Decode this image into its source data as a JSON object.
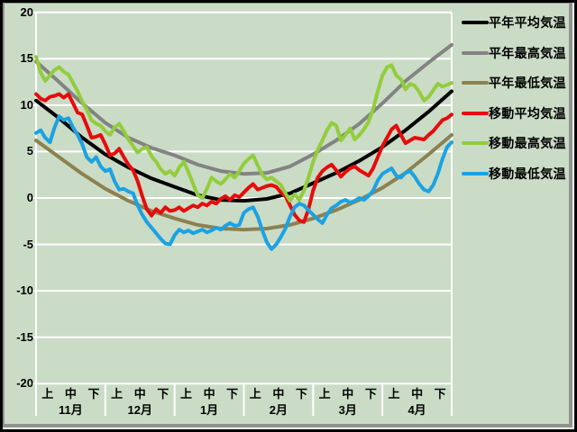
{
  "window": {
    "background_color": "#cadcc6",
    "frame_outer_color": "#000000",
    "frame_inner_color": "#8f948f",
    "gridline_color": "#ffffff"
  },
  "chart_data": {
    "type": "line",
    "title": "",
    "legend_position": "right",
    "grid": true,
    "y_axis": {
      "min": -20,
      "max": 20,
      "tick_step": 5,
      "tick_labels": [
        "20",
        "15",
        "10",
        "5",
        "0",
        "-5",
        "-10",
        "-15",
        "-20"
      ]
    },
    "x_axis": {
      "months": [
        "11月",
        "12月",
        "1月",
        "2月",
        "3月",
        "4月"
      ],
      "period_labels": [
        "上",
        "中",
        "下"
      ],
      "days_total": 180
    },
    "series": [
      {
        "name": "平年平均気温",
        "color": "#000000",
        "line_width": 4,
        "day_interval": 10,
        "values": [
          10.5,
          8.6,
          6.5,
          4.7,
          3.3,
          2.1,
          1.2,
          0.3,
          -0.2,
          -0.3,
          -0.1,
          0.5,
          1.6,
          2.7,
          4.0,
          5.5,
          7.3,
          9.3,
          11.5
        ]
      },
      {
        "name": "平年最高気温",
        "color": "#838383",
        "line_width": 4,
        "day_interval": 10,
        "values": [
          14.7,
          12.5,
          10.2,
          8.1,
          6.5,
          5.4,
          4.6,
          3.6,
          2.9,
          2.6,
          2.7,
          3.4,
          4.7,
          6.2,
          8.0,
          10.2,
          12.6,
          14.6,
          16.5
        ]
      },
      {
        "name": "平年最低気温",
        "color": "#8c8150",
        "line_width": 4,
        "day_interval": 10,
        "values": [
          6.2,
          4.4,
          2.6,
          1.0,
          -0.3,
          -1.4,
          -2.2,
          -2.9,
          -3.3,
          -3.4,
          -3.3,
          -2.9,
          -2.2,
          -1.3,
          -0.2,
          1.1,
          2.7,
          4.7,
          6.8
        ]
      },
      {
        "name": "移動平均気温",
        "color": "#e60c0c",
        "line_width": 4,
        "day_interval": 2,
        "values": [
          11.2,
          10.7,
          10.5,
          10.9,
          11.0,
          11.2,
          10.8,
          11.2,
          10.2,
          9.2,
          9.0,
          7.8,
          6.5,
          6.6,
          6.8,
          5.8,
          4.6,
          4.8,
          5.3,
          4.4,
          3.6,
          3.0,
          1.8,
          0.2,
          -1.2,
          -1.9,
          -1.2,
          -1.6,
          -1.0,
          -1.4,
          -1.3,
          -1.0,
          -1.4,
          -1.1,
          -0.8,
          -1.0,
          -0.6,
          -0.8,
          -0.4,
          -0.6,
          -0.1,
          0.2,
          -0.2,
          0.3,
          0.1,
          0.6,
          1.1,
          1.5,
          0.9,
          1.1,
          1.3,
          1.4,
          1.2,
          0.6,
          0.2,
          -0.8,
          -1.8,
          -2.4,
          -2.6,
          -1.2,
          0.8,
          2.2,
          2.9,
          3.3,
          3.6,
          3.0,
          2.3,
          2.8,
          3.2,
          3.4,
          3.0,
          2.7,
          2.4,
          3.2,
          4.4,
          5.6,
          6.5,
          7.4,
          7.8,
          6.8,
          5.9,
          6.2,
          6.5,
          6.4,
          6.3,
          6.8,
          7.2,
          7.8,
          8.4,
          8.6,
          9.0
        ]
      },
      {
        "name": "移動最高気温",
        "color": "#92cd3c",
        "line_width": 4,
        "day_interval": 2,
        "values": [
          15.2,
          13.5,
          12.6,
          13.2,
          13.8,
          14.1,
          13.6,
          13.3,
          12.4,
          11.5,
          10.4,
          9.5,
          8.4,
          8.0,
          7.8,
          7.2,
          6.8,
          7.6,
          8.0,
          7.2,
          6.3,
          5.6,
          4.9,
          5.3,
          5.5,
          4.5,
          3.9,
          3.1,
          2.6,
          2.9,
          2.4,
          3.3,
          3.9,
          2.8,
          1.5,
          0.3,
          0.0,
          1.0,
          2.2,
          1.8,
          1.5,
          2.0,
          2.6,
          2.2,
          2.9,
          3.7,
          4.2,
          4.6,
          3.5,
          2.5,
          2.0,
          2.2,
          1.8,
          1.4,
          0.5,
          -0.3,
          0.4,
          -0.2,
          0.8,
          2.2,
          3.9,
          5.2,
          6.2,
          7.3,
          8.1,
          7.8,
          6.2,
          6.8,
          7.5,
          6.3,
          6.8,
          7.4,
          8.2,
          9.6,
          11.5,
          13.2,
          14.1,
          14.3,
          13.2,
          12.8,
          11.7,
          12.3,
          12.1,
          11.4,
          10.5,
          10.9,
          11.6,
          12.3,
          12.0,
          12.2,
          12.4
        ]
      },
      {
        "name": "移動最低気温",
        "color": "#1ba2e2",
        "line_width": 4,
        "day_interval": 2,
        "values": [
          7.0,
          7.3,
          6.5,
          6.0,
          7.6,
          8.8,
          8.4,
          8.6,
          7.6,
          6.8,
          5.8,
          4.4,
          3.9,
          4.4,
          3.4,
          2.9,
          3.1,
          1.8,
          0.9,
          1.0,
          0.7,
          0.5,
          -0.8,
          -1.8,
          -2.6,
          -3.2,
          -3.8,
          -4.4,
          -4.9,
          -5.0,
          -4.0,
          -3.4,
          -3.7,
          -3.5,
          -3.8,
          -3.6,
          -3.4,
          -3.7,
          -3.5,
          -3.2,
          -3.4,
          -3.0,
          -2.7,
          -3.0,
          -2.9,
          -1.6,
          -1.2,
          -1.0,
          -2.0,
          -3.5,
          -4.8,
          -5.5,
          -5.0,
          -4.2,
          -3.3,
          -2.0,
          -1.0,
          -0.6,
          -0.8,
          -1.3,
          -1.8,
          -2.3,
          -2.7,
          -1.8,
          -1.1,
          -0.8,
          -0.4,
          -0.2,
          -0.5,
          -0.3,
          0.0,
          -0.2,
          0.2,
          0.8,
          1.9,
          2.6,
          2.9,
          3.2,
          2.4,
          2.2,
          2.7,
          2.9,
          2.3,
          1.5,
          0.9,
          0.7,
          1.4,
          2.6,
          4.2,
          5.5,
          6.0
        ]
      }
    ]
  }
}
